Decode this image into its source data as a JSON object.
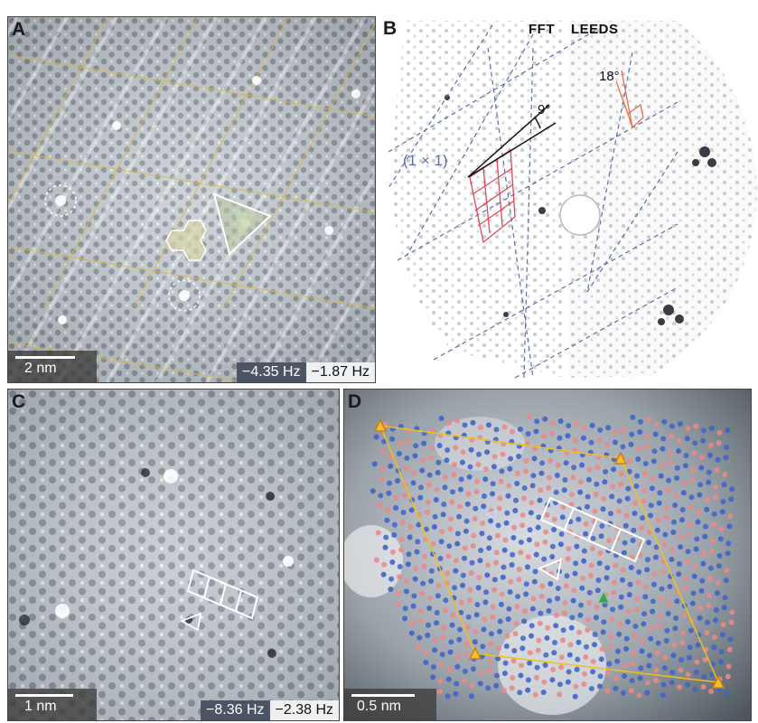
{
  "panels": {
    "A": {
      "label": "A",
      "scale": "2 nm",
      "colorbar": {
        "low": "−4.35 Hz",
        "high": "−1.87 Hz"
      }
    },
    "B": {
      "label": "B",
      "header_left": "FFT",
      "header_right": "LEEDS",
      "angle_small": "9°",
      "angle_large": "18°",
      "cell_label": "(1 × 1)"
    },
    "C": {
      "label": "C",
      "scale": "1 nm",
      "colorbar": {
        "low": "−8.36 Hz",
        "high": "−2.38 Hz"
      }
    },
    "D": {
      "label": "D",
      "scale": "0.5 nm"
    }
  },
  "colors": {
    "yellow_lines": "#d9b84a",
    "red_overlay": "#e0485a",
    "blue_dots": "#3f64c8",
    "red_dots": "#e98a8a",
    "dashed_blue": "#5a6fa8",
    "orange_triangle": "#f0a020",
    "green_triangle": "#3aa05a"
  }
}
